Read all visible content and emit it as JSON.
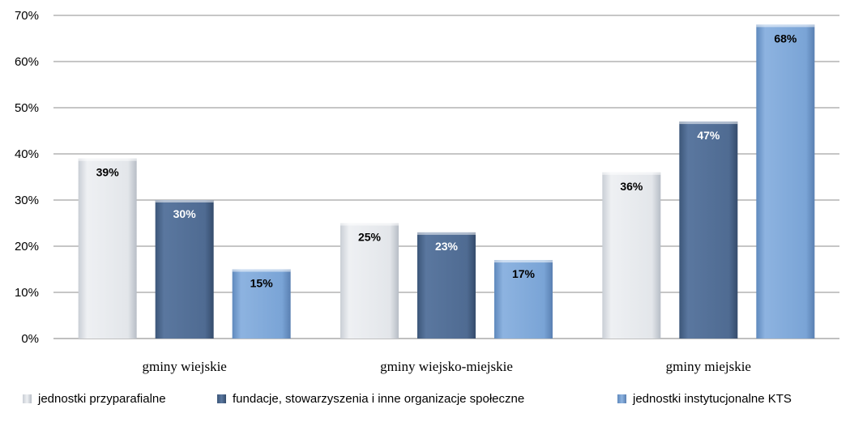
{
  "chart_data": {
    "type": "bar",
    "categories": [
      "gminy wiejskie",
      "gminy wiejsko-miejskie",
      "gminy miejskie"
    ],
    "series": [
      {
        "name": "jednostki przyparafialne",
        "values": [
          39,
          25,
          36
        ],
        "labels": [
          "39%",
          "25%",
          "36%"
        ],
        "color": "#e3e6ea",
        "label_color": "#000000"
      },
      {
        "name": "fundacje, stowarzyszenia i inne organizacje społeczne",
        "values": [
          30,
          23,
          47
        ],
        "labels": [
          "30%",
          "23%",
          "47%"
        ],
        "color": "#4f6b92",
        "label_color": "#ffffff"
      },
      {
        "name": "jednostki instytucjonalne KTS",
        "values": [
          15,
          17,
          68
        ],
        "labels": [
          "15%",
          "17%",
          "68%"
        ],
        "color": "#7aa4d6",
        "label_color": "#000000"
      }
    ],
    "y_ticks": [
      "0%",
      "10%",
      "20%",
      "30%",
      "40%",
      "50%",
      "60%",
      "70%"
    ],
    "ylim": [
      0,
      70
    ],
    "grid": true,
    "legend_position": "bottom",
    "title": "",
    "xlabel": "",
    "ylabel": ""
  }
}
